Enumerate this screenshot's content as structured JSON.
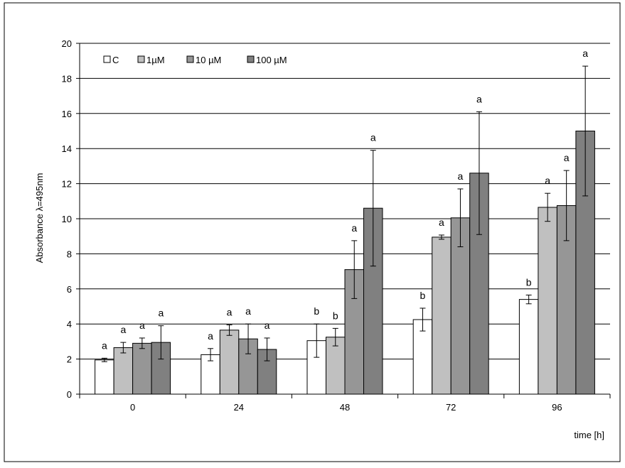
{
  "chart_data": {
    "type": "bar",
    "xlabel": "time [h]",
    "ylabel": "Absorbance λ=495nm",
    "ylim": [
      0,
      20
    ],
    "yticks": [
      "0",
      "2",
      "4",
      "6",
      "8",
      "10",
      "12",
      "14",
      "16",
      "18",
      "20"
    ],
    "categories": [
      "0",
      "24",
      "48",
      "72",
      "96"
    ],
    "grid": "horizontal",
    "legend_position": "top-left",
    "series": [
      {
        "name": "C",
        "color": "#ffffff",
        "values": [
          1.95,
          2.25,
          3.05,
          4.25,
          5.4
        ],
        "errors": [
          0.1,
          0.35,
          0.95,
          0.65,
          0.25
        ],
        "labels": [
          "a",
          "a",
          "b",
          "b",
          "b"
        ]
      },
      {
        "name": "1µM",
        "color": "#c0c0c0",
        "values": [
          2.65,
          3.65,
          3.25,
          8.95,
          10.65
        ],
        "errors": [
          0.3,
          0.3,
          0.5,
          0.12,
          0.8
        ],
        "labels": [
          "a",
          "a",
          "b",
          "a",
          "a"
        ]
      },
      {
        "name": "10 µM",
        "color": "#969696",
        "values": [
          2.9,
          3.15,
          7.1,
          10.05,
          10.75
        ],
        "errors": [
          0.3,
          0.85,
          1.65,
          1.65,
          2.0
        ],
        "labels": [
          "a",
          "a",
          "a",
          "a",
          "a"
        ]
      },
      {
        "name": "100 µM",
        "color": "#808080",
        "values": [
          2.95,
          2.55,
          10.6,
          12.6,
          15.0
        ],
        "errors": [
          0.95,
          0.65,
          3.3,
          3.5,
          3.7
        ],
        "labels": [
          "a",
          "a",
          "a",
          "a",
          "a"
        ]
      }
    ]
  }
}
